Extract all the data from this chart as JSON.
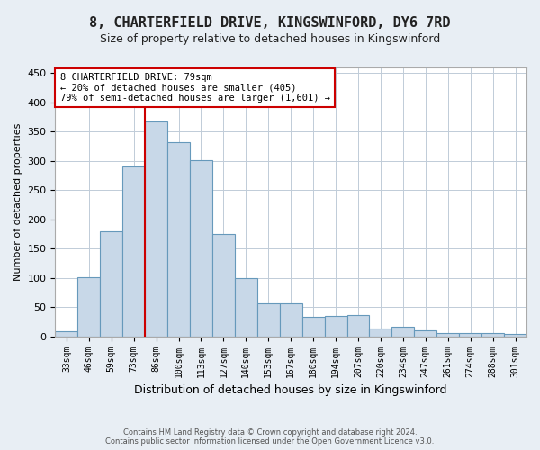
{
  "title_line1": "8, CHARTERFIELD DRIVE, KINGSWINFORD, DY6 7RD",
  "title_line2": "Size of property relative to detached houses in Kingswinford",
  "xlabel": "Distribution of detached houses by size in Kingswinford",
  "ylabel": "Number of detached properties",
  "categories": [
    "33sqm",
    "46sqm",
    "59sqm",
    "73sqm",
    "86sqm",
    "100sqm",
    "113sqm",
    "127sqm",
    "140sqm",
    "153sqm",
    "167sqm",
    "180sqm",
    "194sqm",
    "207sqm",
    "220sqm",
    "234sqm",
    "247sqm",
    "261sqm",
    "274sqm",
    "288sqm",
    "301sqm"
  ],
  "values": [
    8,
    101,
    180,
    290,
    367,
    332,
    302,
    175,
    100,
    57,
    57,
    33,
    35,
    36,
    13,
    17,
    10,
    6,
    6,
    5,
    4
  ],
  "bar_color": "#c8d8e8",
  "bar_edge_color": "#6699bb",
  "vline_color": "#cc0000",
  "ylim": [
    0,
    460
  ],
  "yticks": [
    0,
    50,
    100,
    150,
    200,
    250,
    300,
    350,
    400,
    450
  ],
  "annotation_text": "8 CHARTERFIELD DRIVE: 79sqm\n← 20% of detached houses are smaller (405)\n79% of semi-detached houses are larger (1,601) →",
  "annotation_box_color": "#ffffff",
  "annotation_box_edge": "#cc0000",
  "footer_line1": "Contains HM Land Registry data © Crown copyright and database right 2024.",
  "footer_line2": "Contains public sector information licensed under the Open Government Licence v3.0.",
  "bg_color": "#e8eef4",
  "plot_bg_color": "#ffffff",
  "grid_color": "#c0ccd8",
  "title_fontsize": 11,
  "subtitle_fontsize": 9,
  "tick_fontsize": 7,
  "ylabel_fontsize": 8,
  "xlabel_fontsize": 9
}
